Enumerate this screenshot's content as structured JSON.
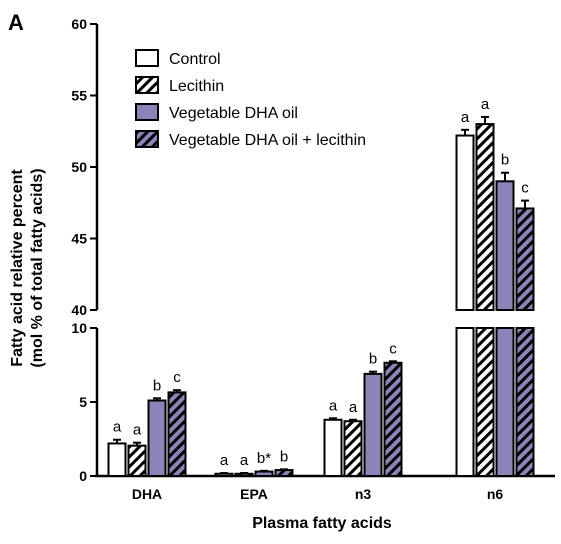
{
  "chart_data": {
    "type": "bar",
    "panel_label": "A",
    "title": "",
    "xlabel": "Plasma fatty acids",
    "ylabel_line1": "Fatty acid relative percent",
    "ylabel_line2": "(mol % of total fatty acids)",
    "categories": [
      "DHA",
      "EPA",
      "n3",
      "n6"
    ],
    "y_axis_break": {
      "lower_range": [
        0,
        10
      ],
      "upper_range": [
        40,
        60
      ]
    },
    "lower_ticks": [
      "0",
      "5",
      "10"
    ],
    "upper_ticks": [
      "40",
      "45",
      "50",
      "55",
      "60"
    ],
    "grid": false,
    "legend_position": "top-left",
    "series": [
      {
        "name": "Control",
        "fill": "#ffffff",
        "hatched": false,
        "values": [
          2.2,
          0.15,
          3.8,
          52.2
        ],
        "errors": [
          0.25,
          0.05,
          0.1,
          0.4
        ],
        "letters": [
          "a",
          "a",
          "a",
          "a"
        ]
      },
      {
        "name": "Lecithin",
        "fill": "#ffffff",
        "hatched": true,
        "values": [
          2.05,
          0.15,
          3.7,
          53.0
        ],
        "errors": [
          0.2,
          0.05,
          0.1,
          0.5
        ],
        "letters": [
          "a",
          "a",
          "a",
          "a"
        ]
      },
      {
        "name": "Vegetable DHA oil",
        "fill": "#8b84b8",
        "hatched": false,
        "values": [
          5.1,
          0.3,
          6.9,
          49.0
        ],
        "errors": [
          0.15,
          0.05,
          0.15,
          0.6
        ],
        "letters": [
          "b",
          "b*",
          "b",
          "b"
        ]
      },
      {
        "name": "Vegetable DHA oil + lecithin",
        "fill": "#8b84b8",
        "hatched": true,
        "values": [
          5.65,
          0.4,
          7.65,
          47.1
        ],
        "errors": [
          0.15,
          0.05,
          0.1,
          0.55
        ],
        "letters": [
          "c",
          "b",
          "c",
          "c"
        ]
      }
    ]
  }
}
